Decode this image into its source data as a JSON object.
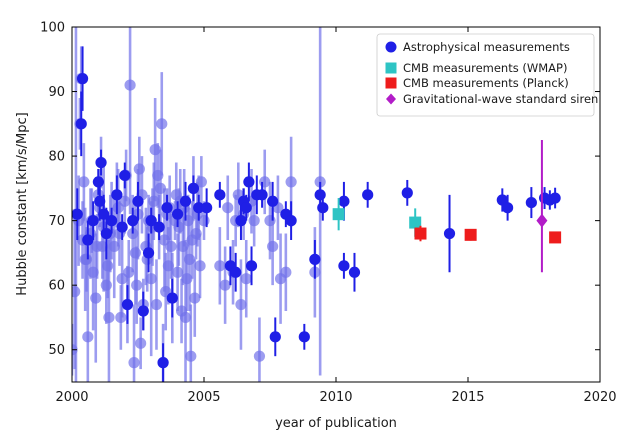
{
  "chart_data": {
    "type": "scatter",
    "title": "",
    "xlabel": "year of publication",
    "ylabel": "Hubble constant [km/s/Mpc]",
    "xlim": [
      2000,
      2020
    ],
    "ylim": [
      45,
      100
    ],
    "xticks": [
      2000,
      2005,
      2010,
      2015,
      2020
    ],
    "yticks": [
      50,
      60,
      70,
      80,
      90,
      100
    ],
    "grid": false,
    "legend_position": "top-right",
    "colors": {
      "astro_recent": "#1f1fe6",
      "astro_old": "#7272ea",
      "wmap": "#2ec4c4",
      "planck": "#ee1c1c",
      "gw": "#b21cc8"
    },
    "series": [
      {
        "name": "Astrophysical measurements",
        "marker": "circle",
        "points_older": [
          [
            2000.0,
            50,
            4
          ],
          [
            2000.1,
            59,
            12
          ],
          [
            2000.15,
            71,
            30
          ],
          [
            2000.25,
            70,
            7
          ],
          [
            2000.35,
            92,
            5
          ],
          [
            2000.3,
            85,
            4
          ],
          [
            2000.4,
            67,
            6
          ],
          [
            2000.5,
            64,
            8
          ],
          [
            2000.6,
            52,
            14
          ],
          [
            2000.7,
            68,
            7
          ],
          [
            2000.75,
            70,
            5
          ],
          [
            2000.8,
            62,
            9
          ],
          [
            2000.9,
            58,
            10
          ],
          [
            2001.0,
            74,
            4
          ],
          [
            2001.05,
            72,
            3
          ],
          [
            2001.1,
            79,
            4
          ],
          [
            2001.15,
            66,
            5
          ],
          [
            2001.2,
            69,
            10
          ],
          [
            2001.3,
            60,
            6
          ],
          [
            2001.4,
            55,
            12
          ],
          [
            2001.5,
            70,
            6
          ],
          [
            2001.6,
            66,
            8
          ],
          [
            2001.7,
            74,
            5
          ],
          [
            2001.8,
            68,
            5
          ],
          [
            2001.9,
            61,
            6
          ],
          [
            2002.0,
            73,
            5
          ],
          [
            2002.05,
            77,
            4
          ],
          [
            2002.1,
            57,
            6
          ],
          [
            2002.2,
            91,
            20
          ],
          [
            2002.3,
            68,
            6
          ],
          [
            2002.35,
            48,
            9
          ],
          [
            2002.4,
            65,
            8
          ],
          [
            2002.5,
            71,
            7
          ],
          [
            2002.55,
            78,
            5
          ],
          [
            2002.6,
            51,
            4
          ],
          [
            2002.7,
            57,
            4
          ],
          [
            2002.8,
            66,
            6
          ],
          [
            2002.9,
            70,
            4
          ],
          [
            2003.0,
            61,
            12
          ],
          [
            2003.1,
            73,
            6
          ],
          [
            2003.15,
            81,
            8
          ],
          [
            2003.2,
            57,
            7
          ],
          [
            2003.3,
            69,
            5
          ],
          [
            2003.35,
            75,
            6
          ],
          [
            2003.4,
            85,
            8
          ],
          [
            2003.45,
            48,
            6
          ],
          [
            2003.5,
            67,
            8
          ],
          [
            2003.55,
            59,
            6
          ],
          [
            2003.6,
            71,
            4
          ],
          [
            2003.7,
            72,
            5
          ],
          [
            2003.8,
            58,
            7
          ],
          [
            2003.9,
            70,
            3
          ],
          [
            2004.0,
            62,
            6
          ],
          [
            2004.1,
            73,
            5
          ],
          [
            2004.2,
            66,
            6
          ],
          [
            2004.3,
            55,
            12
          ],
          [
            2004.4,
            70,
            4
          ],
          [
            2004.45,
            64,
            8
          ],
          [
            2004.5,
            49,
            8
          ],
          [
            2004.6,
            75,
            5
          ],
          [
            2004.7,
            68,
            4
          ],
          [
            2004.8,
            72,
            5
          ],
          [
            2004.9,
            76,
            4
          ],
          [
            2005.0,
            70,
            3
          ],
          [
            2000.45,
            76,
            6
          ],
          [
            2000.55,
            64,
            5
          ],
          [
            2000.95,
            66,
            5
          ],
          [
            2001.35,
            63,
            5
          ],
          [
            2001.45,
            68,
            6
          ],
          [
            2001.75,
            72,
            6
          ],
          [
            2001.85,
            55,
            5
          ],
          [
            2002.15,
            62,
            5
          ],
          [
            2002.45,
            60,
            6
          ],
          [
            2002.65,
            74,
            6
          ],
          [
            2002.85,
            64,
            5
          ],
          [
            2003.05,
            69,
            6
          ],
          [
            2003.25,
            77,
            5
          ],
          [
            2003.65,
            63,
            6
          ],
          [
            2003.75,
            66,
            5
          ],
          [
            2003.95,
            74,
            5
          ],
          [
            2004.05,
            69,
            6
          ],
          [
            2004.15,
            56,
            5
          ],
          [
            2004.25,
            72,
            6
          ],
          [
            2004.35,
            61,
            5
          ],
          [
            2004.55,
            67,
            6
          ],
          [
            2004.65,
            58,
            6
          ],
          [
            2004.75,
            71,
            5
          ],
          [
            2004.85,
            63,
            5
          ],
          [
            2005.6,
            63,
            6
          ],
          [
            2005.8,
            60,
            6
          ],
          [
            2005.9,
            72,
            5
          ],
          [
            2006.1,
            62,
            5
          ],
          [
            2006.2,
            70,
            4
          ],
          [
            2006.3,
            74,
            5
          ],
          [
            2006.4,
            57,
            7
          ],
          [
            2006.5,
            71,
            4
          ],
          [
            2006.6,
            61,
            6
          ],
          [
            2006.8,
            73,
            5
          ],
          [
            2006.9,
            70,
            4
          ],
          [
            2007.1,
            49,
            6
          ],
          [
            2007.3,
            76,
            5
          ],
          [
            2007.5,
            70,
            6
          ],
          [
            2007.6,
            66,
            6
          ],
          [
            2007.8,
            72,
            5
          ],
          [
            2007.9,
            61,
            7
          ],
          [
            2008.1,
            62,
            6
          ],
          [
            2008.3,
            76,
            7
          ],
          [
            2009.2,
            62,
            7
          ],
          [
            2009.4,
            76,
            30
          ]
        ],
        "points_recent": [
          [
            2000.2,
            71,
            4
          ],
          [
            2000.4,
            92,
            5
          ],
          [
            2000.35,
            85,
            5
          ],
          [
            2000.6,
            67,
            3
          ],
          [
            2000.8,
            70,
            3
          ],
          [
            2001.0,
            76,
            2
          ],
          [
            2001.05,
            73,
            3
          ],
          [
            2001.1,
            79,
            2
          ],
          [
            2001.2,
            71,
            3
          ],
          [
            2001.3,
            68,
            4
          ],
          [
            2001.5,
            70,
            2
          ],
          [
            2001.7,
            74,
            3
          ],
          [
            2001.9,
            69,
            2
          ],
          [
            2002.0,
            77,
            2
          ],
          [
            2002.1,
            57,
            3
          ],
          [
            2002.3,
            70,
            2
          ],
          [
            2002.5,
            73,
            3
          ],
          [
            2002.7,
            56,
            3
          ],
          [
            2002.9,
            65,
            3
          ],
          [
            2003.0,
            70,
            2
          ],
          [
            2003.3,
            69,
            2
          ],
          [
            2003.45,
            48,
            3
          ],
          [
            2003.6,
            72,
            2
          ],
          [
            2003.8,
            58,
            3
          ],
          [
            2004.0,
            71,
            2
          ],
          [
            2004.3,
            73,
            3
          ],
          [
            2004.6,
            75,
            2
          ],
          [
            2004.8,
            72,
            2
          ],
          [
            2005.1,
            72,
            3
          ],
          [
            2005.6,
            74,
            2
          ],
          [
            2006.0,
            63,
            3
          ],
          [
            2006.2,
            62,
            3
          ],
          [
            2006.4,
            70,
            3
          ],
          [
            2006.5,
            73,
            2
          ],
          [
            2006.6,
            72,
            2
          ],
          [
            2006.7,
            76,
            3
          ],
          [
            2006.8,
            63,
            3
          ],
          [
            2007.0,
            74,
            3
          ],
          [
            2007.2,
            74,
            2
          ],
          [
            2007.6,
            73,
            3
          ],
          [
            2007.7,
            52,
            3
          ],
          [
            2008.1,
            71,
            2
          ],
          [
            2008.3,
            70,
            3
          ],
          [
            2008.8,
            52,
            2
          ],
          [
            2009.2,
            64,
            3
          ],
          [
            2009.4,
            74,
            2
          ],
          [
            2009.5,
            72,
            2
          ],
          [
            2010.3,
            73,
            3
          ],
          [
            2010.3,
            63,
            2
          ],
          [
            2010.7,
            62,
            3
          ],
          [
            2011.2,
            74,
            2
          ],
          [
            2012.7,
            74.3,
            2
          ],
          [
            2014.3,
            68,
            6
          ],
          [
            2016.3,
            73.2,
            1.8
          ],
          [
            2016.5,
            72,
            2
          ],
          [
            2017.4,
            72.8,
            2.4
          ],
          [
            2017.9,
            73.5,
            1.7
          ],
          [
            2018.1,
            73.2,
            1.5
          ],
          [
            2018.3,
            73.5,
            1.6
          ]
        ]
      },
      {
        "name": "CMB measurements (WMAP)",
        "marker": "square",
        "points": [
          [
            2010.1,
            71,
            2.5
          ],
          [
            2013.0,
            69.7,
            2.2
          ]
        ]
      },
      {
        "name": "CMB measurements (Planck)",
        "marker": "square",
        "points": [
          [
            2013.2,
            68,
            1.2
          ],
          [
            2015.1,
            67.8,
            0.9
          ],
          [
            2018.3,
            67.4,
            0.5
          ]
        ]
      },
      {
        "name": "Gravitational-wave standard siren",
        "marker": "diamond",
        "points": [
          [
            2017.8,
            70,
            [
              8,
              12.5
            ]
          ]
        ]
      }
    ],
    "legend": [
      "Astrophysical measurements",
      "CMB measurements (WMAP)",
      "CMB measurements (Planck)",
      "Gravitational-wave standard siren"
    ]
  }
}
